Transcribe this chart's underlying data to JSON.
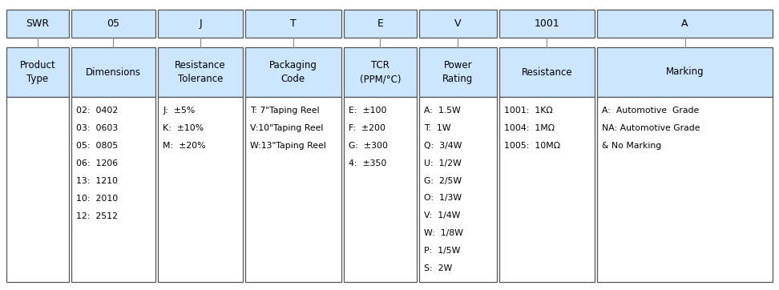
{
  "bg_color": "#ffffff",
  "box_fill": "#cce6ff",
  "box_edge": "#555555",
  "columns": [
    {
      "code": "SWR",
      "header": "Product\nType",
      "details": "",
      "text_align": "center"
    },
    {
      "code": "05",
      "header": "Dimensions",
      "details": "02:  0402\n03:  0603\n05:  0805\n06:  1206\n13:  1210\n10:  2010\n12:  2512",
      "text_align": "left"
    },
    {
      "code": "J",
      "header": "Resistance\nTolerance",
      "details": "J:  ±5%\nK:  ±10%\nM:  ±20%",
      "text_align": "left"
    },
    {
      "code": "T",
      "header": "Packaging\nCode",
      "details": "T: 7\"Taping Reel\nV:10\"Taping Reel\nW:13\"Taping Reel",
      "text_align": "left"
    },
    {
      "code": "E",
      "header": "TCR\n(PPM/°C)",
      "details": "E:  ±100\nF:  ±200\nG:  ±300\n4:  ±350",
      "text_align": "left"
    },
    {
      "code": "V",
      "header": "Power\nRating",
      "details": "A:  1.5W\nT:  1W\nQ:  3/4W\nU:  1/2W\nG:  2/5W\nO:  1/3W\nV:  1/4W\nW:  1/8W\nP:  1/5W\nS:  2W",
      "text_align": "left"
    },
    {
      "code": "1001",
      "header": "Resistance",
      "details": "1001:  1KΩ\n1004:  1MΩ\n1005:  10MΩ",
      "text_align": "left"
    },
    {
      "code": "A",
      "header": "Marking",
      "details": "A:  Automotive  Grade\nNA: Automotive Grade\n& No Marking",
      "text_align": "left"
    }
  ],
  "fig_width": 9.72,
  "fig_height": 3.62,
  "dpi": 100
}
